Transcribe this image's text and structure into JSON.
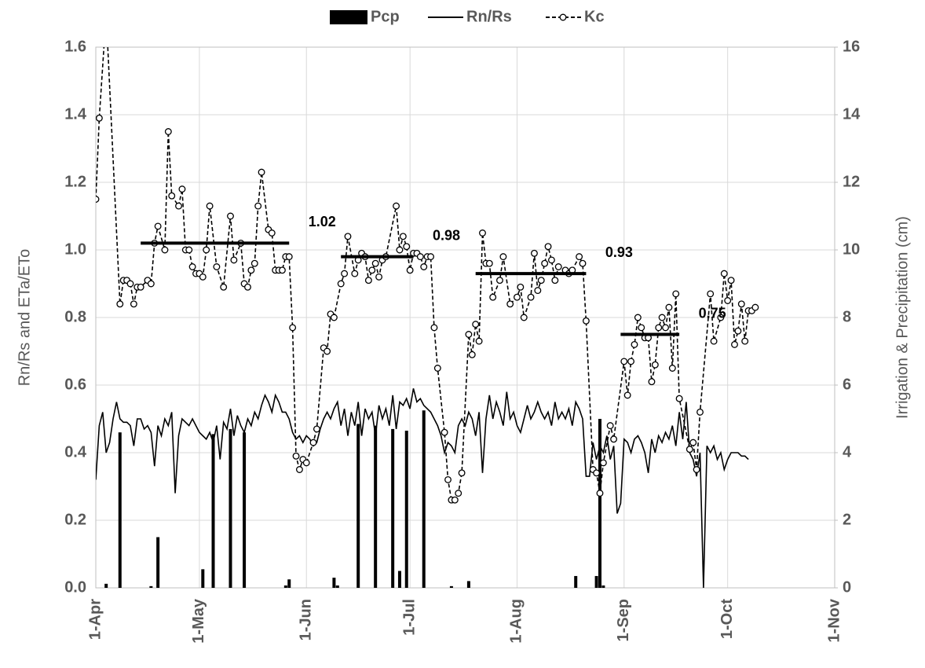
{
  "chart_data": {
    "type": "combo",
    "y_label": "Rn/Rs and ETa/ETo",
    "y2_label": "Irrigation & Precipitation (cm)",
    "xlim": [
      0,
      214
    ],
    "xticks": [
      {
        "value": 0,
        "label": "1-Apr"
      },
      {
        "value": 30,
        "label": "1-May"
      },
      {
        "value": 61,
        "label": "1-Jun"
      },
      {
        "value": 91,
        "label": "1-Jul"
      },
      {
        "value": 122,
        "label": "1-Aug"
      },
      {
        "value": 153,
        "label": "1-Sep"
      },
      {
        "value": 183,
        "label": "1-Oct"
      },
      {
        "value": 214,
        "label": "1-Nov"
      }
    ],
    "ylim": [
      0,
      1.6
    ],
    "yticks": [
      {
        "value": 0,
        "label": "0.0"
      },
      0.2,
      0.4,
      0.6,
      0.8,
      {
        "value": 1,
        "label": "1.0"
      },
      1.2,
      1.4,
      1.6
    ],
    "y2lim": [
      0,
      16
    ],
    "y2ticks": [
      0,
      2,
      4,
      6,
      8,
      10,
      12,
      14,
      16
    ],
    "grid": true,
    "legend": "top",
    "series": [
      {
        "name": "Pcp",
        "type": "bar",
        "axis": "y2",
        "color": "#000000",
        "x": [
          3,
          7,
          16,
          18,
          31,
          34,
          39,
          43,
          55,
          56,
          69,
          70,
          76,
          81,
          86,
          88,
          90,
          95,
          103,
          108,
          139,
          145,
          146,
          147
        ],
        "values": [
          0.12,
          4.6,
          0.05,
          1.5,
          0.55,
          4.55,
          4.7,
          4.6,
          0.07,
          0.25,
          0.3,
          0.07,
          4.85,
          4.8,
          4.7,
          0.5,
          4.65,
          5.25,
          0.05,
          0.2,
          0.35,
          0.35,
          5.0,
          0.07
        ]
      },
      {
        "name": "Rn/Rs",
        "type": "line",
        "line_style": "solid",
        "color": "#000000",
        "x": [
          0,
          1,
          2,
          3,
          4,
          5,
          6,
          7,
          8,
          9,
          10,
          11,
          12,
          13,
          14,
          15,
          16,
          17,
          18,
          19,
          20,
          21,
          22,
          23,
          24,
          25,
          26,
          27,
          28,
          29,
          30,
          31,
          32,
          33,
          34,
          35,
          36,
          37,
          38,
          39,
          40,
          41,
          42,
          43,
          44,
          45,
          46,
          47,
          48,
          49,
          50,
          51,
          52,
          53,
          54,
          55,
          56,
          57,
          58,
          59,
          60,
          61,
          62,
          63,
          64,
          65,
          66,
          67,
          68,
          69,
          70,
          71,
          72,
          73,
          74,
          75,
          76,
          77,
          78,
          79,
          80,
          81,
          82,
          83,
          84,
          85,
          86,
          87,
          88,
          89,
          90,
          91,
          92,
          93,
          94,
          95,
          96,
          97,
          98,
          99,
          100,
          101,
          102,
          103,
          104,
          105,
          106,
          107,
          108,
          109,
          110,
          111,
          112,
          113,
          114,
          115,
          116,
          117,
          118,
          119,
          120,
          121,
          122,
          123,
          124,
          125,
          126,
          127,
          128,
          129,
          130,
          131,
          132,
          133,
          134,
          135,
          136,
          137,
          138,
          139,
          140,
          141,
          142,
          143,
          144,
          145,
          146,
          147,
          148,
          149,
          150,
          151,
          152,
          153,
          154,
          155,
          156,
          157,
          158,
          159,
          160,
          161,
          162,
          163,
          164,
          165,
          166,
          167,
          168,
          169,
          170,
          171,
          172,
          173,
          174,
          175,
          176,
          177,
          178,
          179,
          180,
          181,
          182,
          183,
          184,
          185,
          186,
          187,
          188,
          189
        ],
        "values": [
          0.32,
          0.48,
          0.52,
          0.4,
          0.43,
          0.5,
          0.55,
          0.5,
          0.49,
          0.49,
          0.48,
          0.42,
          0.5,
          0.5,
          0.47,
          0.48,
          0.46,
          0.36,
          0.48,
          0.45,
          0.5,
          0.48,
          0.52,
          0.28,
          0.45,
          0.5,
          0.49,
          0.48,
          0.5,
          0.48,
          0.46,
          0.45,
          0.44,
          0.46,
          0.43,
          0.48,
          0.38,
          0.49,
          0.47,
          0.53,
          0.45,
          0.51,
          0.48,
          0.46,
          0.5,
          0.48,
          0.52,
          0.5,
          0.54,
          0.57,
          0.55,
          0.52,
          0.57,
          0.55,
          0.52,
          0.52,
          0.5,
          0.46,
          0.44,
          0.45,
          0.43,
          0.45,
          0.44,
          0.42,
          0.43,
          0.47,
          0.5,
          0.52,
          0.5,
          0.53,
          0.55,
          0.48,
          0.53,
          0.45,
          0.52,
          0.48,
          0.55,
          0.45,
          0.53,
          0.5,
          0.52,
          0.45,
          0.54,
          0.5,
          0.53,
          0.48,
          0.57,
          0.47,
          0.55,
          0.54,
          0.56,
          0.53,
          0.59,
          0.55,
          0.56,
          0.54,
          0.53,
          0.52,
          0.5,
          0.48,
          0.45,
          0.4,
          0.43,
          0.42,
          0.4,
          0.48,
          0.5,
          0.48,
          0.52,
          0.5,
          0.45,
          0.52,
          0.34,
          0.5,
          0.57,
          0.5,
          0.55,
          0.52,
          0.48,
          0.58,
          0.5,
          0.52,
          0.48,
          0.46,
          0.5,
          0.54,
          0.5,
          0.52,
          0.55,
          0.52,
          0.5,
          0.52,
          0.48,
          0.55,
          0.5,
          0.52,
          0.5,
          0.53,
          0.48,
          0.55,
          0.53,
          0.5,
          0.33,
          0.33,
          0.43,
          0.38,
          0.42,
          0.4,
          0.45,
          0.38,
          0.42,
          0.22,
          0.25,
          0.44,
          0.43,
          0.4,
          0.44,
          0.45,
          0.43,
          0.4,
          0.34,
          0.44,
          0.4,
          0.45,
          0.43,
          0.46,
          0.44,
          0.48,
          0.42,
          0.52,
          0.44,
          0.55,
          0.4,
          0.38,
          0.33,
          0.4,
          0.0,
          0.42,
          0.4,
          0.42,
          0.38,
          0.4,
          0.35,
          0.38,
          0.4,
          0.4,
          0.4,
          0.39,
          0.39,
          0.38
        ]
      },
      {
        "name": "Kc",
        "type": "line",
        "line_style": "dashed",
        "marker": "circle",
        "color": "#000000",
        "x": [
          0,
          1,
          3,
          7,
          8,
          9,
          10,
          11,
          12,
          13,
          15,
          16,
          17,
          18,
          20,
          21,
          22,
          24,
          25,
          26,
          27,
          28,
          29,
          30,
          31,
          32,
          33,
          35,
          37,
          39,
          40,
          42,
          43,
          44,
          45,
          46,
          47,
          48,
          50,
          51,
          52,
          53,
          54,
          55,
          56,
          57,
          58,
          59,
          60,
          61,
          63,
          64,
          66,
          67,
          68,
          69,
          71,
          72,
          73,
          75,
          76,
          77,
          78,
          79,
          80,
          81,
          82,
          83,
          84,
          87,
          88,
          89,
          90,
          91,
          92,
          93,
          94,
          95,
          96,
          97,
          98,
          99,
          101,
          102,
          103,
          104,
          105,
          106,
          108,
          109,
          110,
          111,
          112,
          113,
          114,
          115,
          117,
          118,
          120,
          122,
          123,
          124,
          126,
          127,
          128,
          129,
          130,
          131,
          132,
          133,
          134,
          136,
          137,
          138,
          140,
          141,
          142,
          144,
          145,
          146,
          147,
          149,
          150,
          153,
          154,
          155,
          156,
          157,
          158,
          159,
          160,
          161,
          162,
          163,
          164,
          165,
          166,
          167,
          168,
          169,
          172,
          173,
          174,
          175,
          178,
          179,
          181,
          182,
          183,
          184,
          185,
          186,
          187,
          188,
          189,
          190,
          191
        ],
        "values": [
          1.15,
          1.39,
          1.7,
          0.84,
          0.91,
          0.91,
          0.9,
          0.84,
          0.89,
          0.89,
          0.91,
          0.9,
          1.02,
          1.07,
          1.0,
          1.35,
          1.16,
          1.13,
          1.18,
          1.0,
          1.0,
          0.95,
          0.93,
          0.93,
          0.92,
          1.0,
          1.13,
          0.95,
          0.89,
          1.1,
          0.97,
          1.02,
          0.9,
          0.89,
          0.94,
          0.96,
          1.13,
          1.23,
          1.06,
          1.05,
          0.94,
          0.94,
          0.94,
          0.98,
          0.98,
          0.77,
          0.39,
          0.35,
          0.38,
          0.37,
          0.43,
          0.47,
          0.71,
          0.7,
          0.81,
          0.8,
          0.9,
          0.93,
          1.04,
          0.93,
          0.97,
          0.99,
          0.98,
          0.91,
          0.94,
          0.96,
          0.92,
          0.97,
          0.98,
          1.13,
          1.0,
          1.04,
          1.01,
          0.94,
          0.99,
          0.99,
          0.98,
          0.95,
          0.98,
          0.98,
          0.77,
          0.65,
          0.46,
          0.32,
          0.26,
          0.26,
          0.28,
          0.34,
          0.75,
          0.69,
          0.78,
          0.73,
          1.05,
          0.96,
          0.96,
          0.86,
          0.91,
          0.98,
          0.84,
          0.86,
          0.89,
          0.8,
          0.86,
          0.99,
          0.88,
          0.91,
          0.96,
          1.01,
          0.97,
          0.91,
          0.95,
          0.94,
          0.93,
          0.94,
          0.98,
          0.96,
          0.79,
          0.35,
          0.34,
          0.28,
          0.37,
          0.48,
          0.44,
          0.67,
          0.57,
          0.67,
          0.72,
          0.8,
          0.77,
          0.74,
          0.74,
          0.61,
          0.66,
          0.77,
          0.8,
          0.77,
          0.83,
          0.65,
          0.87,
          0.56,
          0.41,
          0.43,
          0.35,
          0.52,
          0.87,
          0.73,
          0.8,
          0.93,
          0.85,
          0.91,
          0.72,
          0.76,
          0.84,
          0.73,
          0.82,
          0.82,
          0.83
        ]
      }
    ],
    "stage_means": [
      {
        "x": [
          13,
          56
        ],
        "value": 1.02
      },
      {
        "x": [
          71,
          92
        ],
        "value": 0.98
      },
      {
        "x": [
          110,
          142
        ],
        "value": 0.93
      },
      {
        "x": [
          152,
          169
        ],
        "value": 0.75
      }
    ]
  }
}
